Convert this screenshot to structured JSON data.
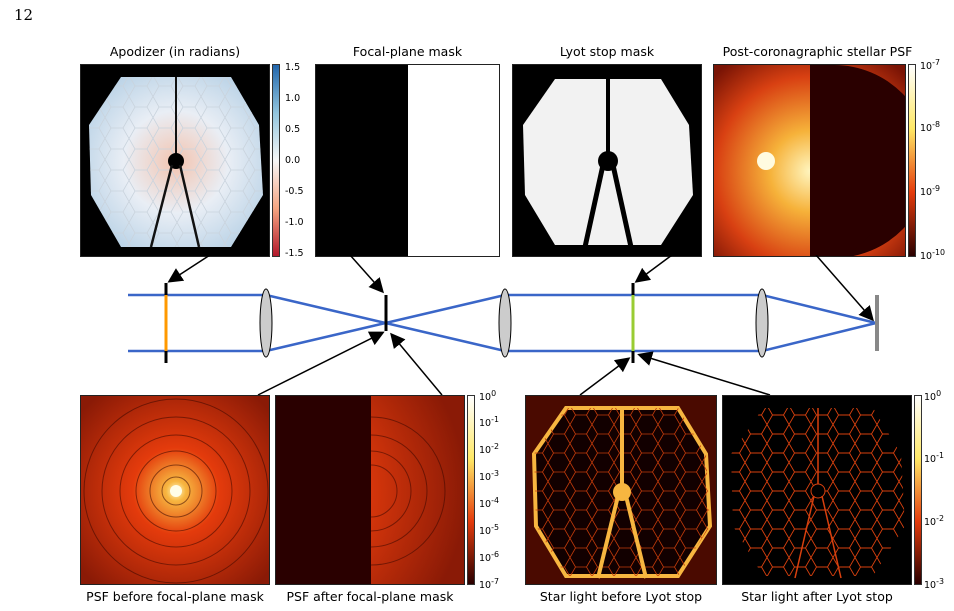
{
  "page_number": "12",
  "top_panels": [
    {
      "title": "Apodizer (in radians)"
    },
    {
      "title": "Focal-plane mask"
    },
    {
      "title": "Lyot stop mask"
    },
    {
      "title": "Post-coronagraphic stellar PSF"
    }
  ],
  "bottom_panels": [
    {
      "caption": "PSF before focal-plane mask"
    },
    {
      "caption": "PSF after focal-plane mask"
    },
    {
      "caption": "Star light before Lyot stop"
    },
    {
      "caption": "Star light after Lyot stop"
    }
  ],
  "colorbars": {
    "apodizer": {
      "ticks": [
        "1.5",
        "1.0",
        "0.5",
        "0.0",
        "-0.5",
        "-1.0",
        "-1.5"
      ],
      "colors": [
        "#2166ac",
        "#ffffff",
        "#b2182b"
      ]
    },
    "stellar_psf": {
      "ticks": [
        "10",
        "10",
        "10",
        "10"
      ],
      "exps": [
        "-7",
        "-8",
        "-9",
        "-10"
      ],
      "colors": [
        "#ffffff",
        "#ffe866",
        "#e43b0c",
        "#2a0000"
      ]
    },
    "psf": {
      "ticks": [
        "10",
        "10",
        "10",
        "10",
        "10",
        "10",
        "10",
        "10"
      ],
      "exps": [
        "0",
        "-1",
        "-2",
        "-3",
        "-4",
        "-5",
        "-6",
        "-7"
      ],
      "colors": [
        "#ffffff",
        "#ffe866",
        "#e43b0c",
        "#2a0000"
      ]
    },
    "lyot": {
      "ticks": [
        "10",
        "10",
        "10",
        "10"
      ],
      "exps": [
        "0",
        "-1",
        "-2",
        "-3"
      ],
      "colors": [
        "#ffffff",
        "#ffe866",
        "#e43b0c",
        "#2a0000"
      ]
    }
  },
  "colors": {
    "beam": "#3a66c8",
    "apodizer_plane": "#ff9900",
    "lyot_plane": "#99cc33",
    "lens": "#cccccc",
    "detector": "#888888"
  }
}
